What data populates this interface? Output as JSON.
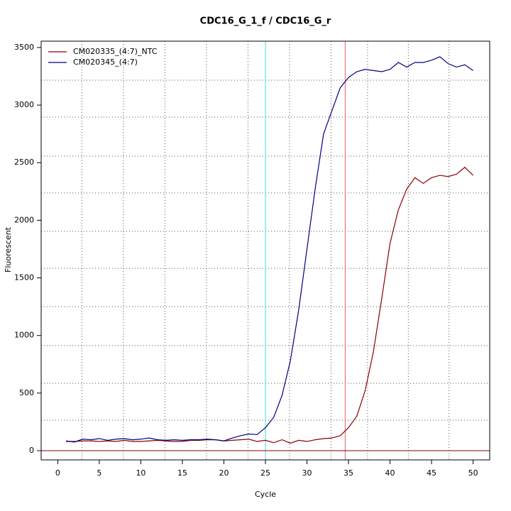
{
  "chart_data": {
    "type": "line",
    "title": "CDC16_G_1_f / CDC16_G_r",
    "xlabel": "Cycle",
    "ylabel": "Fluorescent",
    "x": [
      1,
      2,
      3,
      4,
      5,
      6,
      7,
      8,
      9,
      10,
      11,
      12,
      13,
      14,
      15,
      16,
      17,
      18,
      19,
      20,
      21,
      22,
      23,
      24,
      25,
      26,
      27,
      28,
      29,
      30,
      31,
      32,
      33,
      34,
      35,
      36,
      37,
      38,
      39,
      40,
      41,
      42,
      43,
      44,
      45,
      46,
      47,
      48,
      49,
      50
    ],
    "series": [
      {
        "name": "CM020335_(4:7)_NTC",
        "color": "#8b0000",
        "values": [
          80,
          80,
          85,
          85,
          80,
          85,
          80,
          90,
          80,
          80,
          85,
          90,
          85,
          80,
          80,
          90,
          90,
          95,
          95,
          85,
          90,
          95,
          100,
          80,
          90,
          70,
          95,
          65,
          90,
          80,
          95,
          105,
          110,
          130,
          200,
          300,
          520,
          860,
          1320,
          1800,
          2090,
          2270,
          2370,
          2320,
          2370,
          2390,
          2380,
          2400,
          2460,
          2390
        ]
      },
      {
        "name": "CM020345_(4:7)",
        "color": "#000080",
        "values": [
          85,
          75,
          100,
          95,
          105,
          90,
          100,
          105,
          95,
          100,
          110,
          95,
          90,
          95,
          90,
          95,
          95,
          100,
          95,
          85,
          110,
          130,
          145,
          140,
          200,
          290,
          480,
          780,
          1220,
          1750,
          2280,
          2750,
          2950,
          3150,
          3240,
          3290,
          3310,
          3300,
          3290,
          3310,
          3370,
          3330,
          3370,
          3370,
          3390,
          3420,
          3360,
          3330,
          3350,
          3300
        ]
      }
    ],
    "xlim": [
      -2,
      52
    ],
    "xticks": [
      0,
      5,
      10,
      15,
      20,
      25,
      30,
      35,
      40,
      45,
      50
    ],
    "ylim": [
      -80,
      3555
    ],
    "yticks": [
      0,
      500,
      1000,
      1500,
      2000,
      2500,
      3000,
      3500
    ],
    "xgrid": [
      2.9,
      7.9,
      12.9,
      17.9,
      22.9,
      27.9,
      32.9,
      37.3,
      42.2,
      47.1
    ],
    "ygrid": [
      265,
      585,
      912,
      1251,
      1583,
      1904,
      2237,
      2557,
      2896,
      3216
    ],
    "vlines": [
      {
        "value": 25,
        "color": "#40d8d8"
      },
      {
        "value": 34.6,
        "color": "#e06060"
      }
    ],
    "hlines": [
      {
        "value": 0,
        "color": "#8b0000"
      }
    ],
    "legend": "top-left"
  }
}
